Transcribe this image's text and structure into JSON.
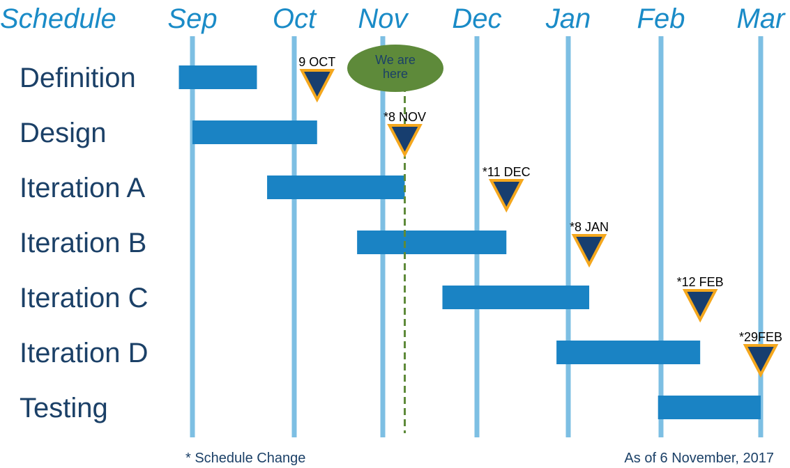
{
  "chart_data": {
    "type": "gantt",
    "header_label": "Schedule",
    "months": [
      "Sep",
      "Oct",
      "Nov",
      "Dec",
      "Jan",
      "Feb",
      "Mar"
    ],
    "x_range": [
      "2017-09-01",
      "2018-03-01"
    ],
    "tasks": [
      {
        "name": "Definition",
        "start": "2017-08-28",
        "end": "2017-09-20"
      },
      {
        "name": "Design",
        "start": "2017-09-01",
        "end": "2017-10-09"
      },
      {
        "name": "Iteration A",
        "start": "2017-09-23",
        "end": "2017-11-08"
      },
      {
        "name": "Iteration B",
        "start": "2017-10-23",
        "end": "2017-12-11"
      },
      {
        "name": "Iteration C",
        "start": "2017-11-20",
        "end": "2018-01-08"
      },
      {
        "name": "Iteration D",
        "start": "2017-12-28",
        "end": "2018-02-12"
      },
      {
        "name": "Testing",
        "start": "2018-01-31",
        "end": "2018-03-01"
      }
    ],
    "milestones": [
      {
        "label": "9 OCT",
        "date": "2017-10-09",
        "row": 0
      },
      {
        "label": "*8 NOV",
        "date": "2017-11-08",
        "row": 1
      },
      {
        "label": "*11 DEC",
        "date": "2017-12-11",
        "row": 2
      },
      {
        "label": "*8 JAN",
        "date": "2018-01-08",
        "row": 3
      },
      {
        "label": "*12 FEB",
        "date": "2018-02-12",
        "row": 4
      },
      {
        "label": "*29FEB",
        "date": "2018-03-01",
        "row": 5
      }
    ],
    "today": {
      "date": "2017-11-08",
      "label_lines": [
        "We are",
        "here"
      ]
    },
    "footnote": "* Schedule Change",
    "as_of": "As of 6 November, 2017",
    "colors": {
      "header": "#1a8bc7",
      "task_label": "#1b4067",
      "gridline": "#7dbfe3",
      "bar": "#1a83c4",
      "milestone_fill": "#173e6f",
      "milestone_stroke": "#f4a71d",
      "today_fill": "#5e8a3a",
      "today_line": "#5e8a3a"
    }
  }
}
